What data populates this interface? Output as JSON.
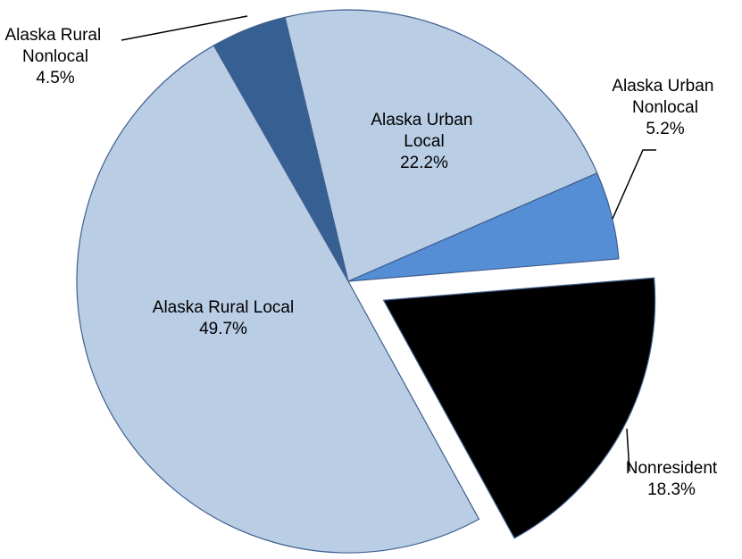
{
  "chart_data": {
    "type": "pie",
    "categories": [
      "Alaska Rural Nonlocal",
      "Alaska Urban Local",
      "Alaska Urban Nonlocal",
      "Nonresident",
      "Alaska Rural Local"
    ],
    "values": [
      4.5,
      22.2,
      5.2,
      18.3,
      49.7
    ],
    "value_labels": [
      "4.5%",
      "22.2%",
      "5.2%",
      "18.3%",
      "49.7%"
    ],
    "colors": [
      "#376092",
      "#b9cde5",
      "#558ed5",
      "#000000",
      "#b9cde5"
    ],
    "exploded": [
      "Nonresident"
    ]
  }
}
